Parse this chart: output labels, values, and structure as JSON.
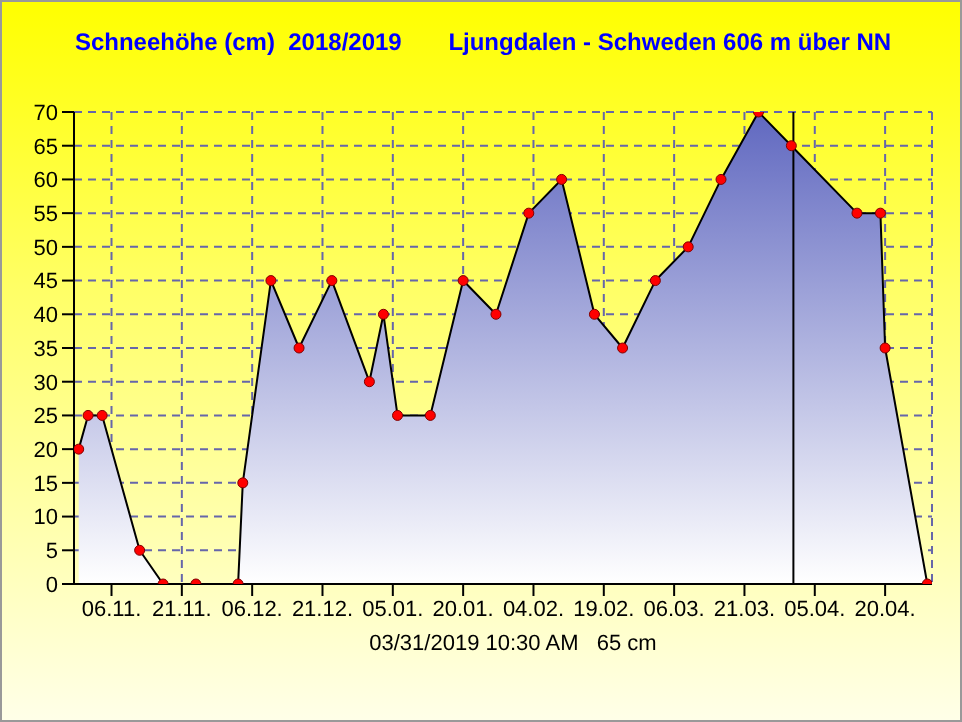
{
  "chart_data": {
    "type": "area",
    "title": "Schneehöhe (cm)  2018/2019       Ljungdalen - Schweden 606 m über NN",
    "annotations": [
      "03/31/2019 10:30 AM   65 cm"
    ],
    "x": [
      "2018-10-30",
      "2018-11-01",
      "2018-11-04",
      "2018-11-12",
      "2018-11-17",
      "2018-11-24",
      "2018-12-03",
      "2018-12-04",
      "2018-12-10",
      "2018-12-16",
      "2018-12-23",
      "2018-12-31",
      "2019-01-03",
      "2019-01-06",
      "2019-01-13",
      "2019-01-20",
      "2019-01-27",
      "2019-02-03",
      "2019-02-10",
      "2019-02-17",
      "2019-02-23",
      "2019-03-02",
      "2019-03-09",
      "2019-03-16",
      "2019-03-24",
      "2019-03-31",
      "2019-04-14",
      "2019-04-19",
      "2019-04-20",
      "2019-04-29"
    ],
    "series": [
      {
        "color": "#6068c0",
        "values": [
          20,
          25,
          25,
          5,
          0,
          0,
          0,
          15,
          45,
          35,
          45,
          30,
          40,
          25,
          25,
          45,
          40,
          55,
          60,
          40,
          35,
          45,
          50,
          60,
          70,
          65,
          55,
          55,
          35,
          0
        ]
      }
    ],
    "xlim": [
      "2018-10-29",
      "2019-04-30"
    ],
    "xticks": [
      {
        "value": "2018-11-06",
        "label": "06.11."
      },
      {
        "value": "2018-11-21",
        "label": "21.11."
      },
      {
        "value": "2018-12-06",
        "label": "06.12."
      },
      {
        "value": "2018-12-21",
        "label": "21.12."
      },
      {
        "value": "2019-01-05",
        "label": "05.01."
      },
      {
        "value": "2019-01-20",
        "label": "20.01."
      },
      {
        "value": "2019-02-04",
        "label": "04.02."
      },
      {
        "value": "2019-02-19",
        "label": "19.02."
      },
      {
        "value": "2019-03-06",
        "label": "06.03."
      },
      {
        "value": "2019-03-21",
        "label": "21.03."
      },
      {
        "value": "2019-04-05",
        "label": "05.04."
      },
      {
        "value": "2019-04-20",
        "label": "20.04."
      }
    ],
    "ylim": [
      0,
      70
    ],
    "yticks": [
      0,
      5,
      10,
      15,
      20,
      25,
      30,
      35,
      40,
      45,
      50,
      55,
      60,
      65,
      70
    ],
    "ref_lines": [
      {
        "axis": "x",
        "value": "2019-03-31T10:30",
        "color": "#000000"
      }
    ],
    "grid": true,
    "marker": "circle",
    "line_style": "solid"
  }
}
